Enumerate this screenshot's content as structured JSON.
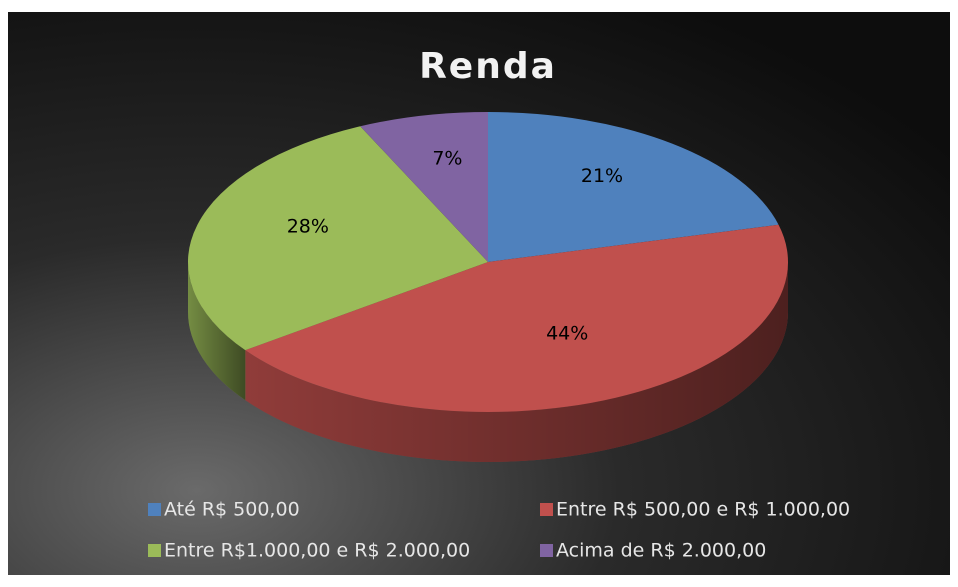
{
  "chart_data": {
    "type": "pie",
    "title": "Renda",
    "categories": [
      "Até R$ 500,00",
      "Entre R$ 500,00 e R$ 1.000,00",
      "Entre R$1.000,00 e R$ 2.000,00",
      "Acima de R$ 2.000,00"
    ],
    "values": [
      21,
      44,
      28,
      7
    ],
    "value_labels": [
      "21%",
      "44%",
      "28%",
      "7%"
    ],
    "colors": [
      "#4f81bd",
      "#c0504d",
      "#9bbb59",
      "#8064a2"
    ],
    "legend": "bottom"
  }
}
